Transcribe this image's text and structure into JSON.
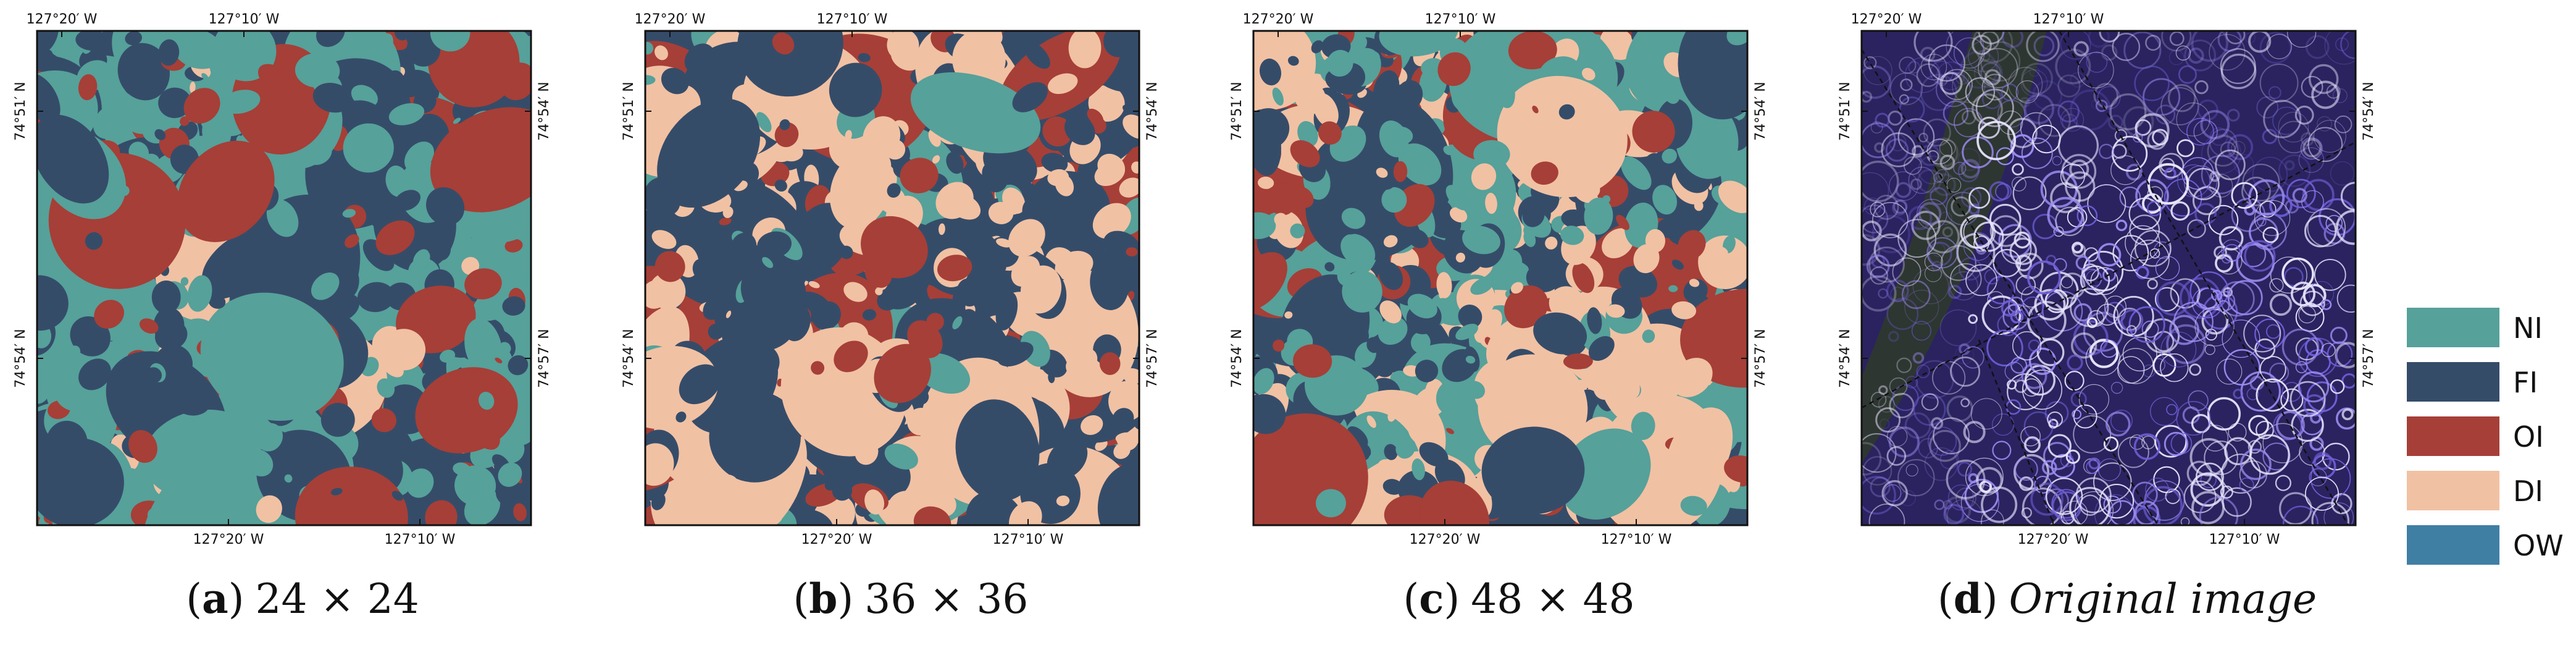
{
  "legend": {
    "items": [
      {
        "label": "NI",
        "color": "#56a19a"
      },
      {
        "label": "FI",
        "color": "#354c69"
      },
      {
        "label": "OI",
        "color": "#a63f37"
      },
      {
        "label": "DI",
        "color": "#f1c1a3"
      },
      {
        "label": "OW",
        "color": "#3f7fa4"
      }
    ]
  },
  "panels": [
    {
      "tag": "a",
      "caption": "24 × 24",
      "italic": false,
      "kind": "class-map",
      "seed": 11,
      "weights": {
        "NI": 0.42,
        "FI": 0.38,
        "OI": 0.14,
        "DI": 0.06
      }
    },
    {
      "tag": "b",
      "caption": "36 × 36",
      "italic": false,
      "kind": "class-map",
      "seed": 23,
      "weights": {
        "NI": 0.08,
        "FI": 0.36,
        "OI": 0.18,
        "DI": 0.38
      }
    },
    {
      "tag": "c",
      "caption": "48 × 48",
      "italic": false,
      "kind": "class-map",
      "seed": 37,
      "weights": {
        "NI": 0.36,
        "FI": 0.28,
        "OI": 0.12,
        "DI": 0.24
      }
    },
    {
      "tag": "d",
      "caption": "Original image",
      "italic": true,
      "kind": "sar-image",
      "seed": 53
    }
  ],
  "axis_labels": {
    "top": [
      "127°20′ W",
      "127°10′ W"
    ],
    "bottom": [
      "127°20′ W",
      "127°10′ W"
    ],
    "left": [
      "74°51′ N",
      "74°54′ N"
    ],
    "right": [
      "74°54′ N",
      "74°57′ N"
    ]
  }
}
